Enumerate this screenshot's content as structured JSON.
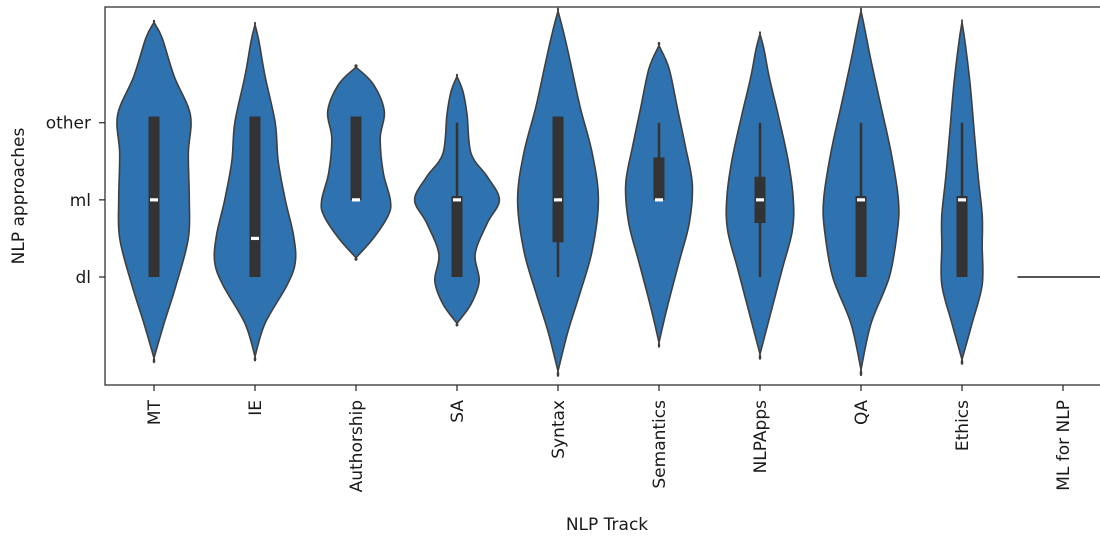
{
  "chart_data": {
    "type": "violin",
    "xlabel": "NLP Track",
    "ylabel": "NLP approaches",
    "y_categories": [
      "other",
      "ml",
      "dl"
    ],
    "y_ticks": [
      {
        "label": "other",
        "value": 2
      },
      {
        "label": "ml",
        "value": 1
      },
      {
        "label": "dl",
        "value": 0
      }
    ],
    "ylim": [
      -1.4,
      3.5
    ],
    "color": "#2f72b0",
    "box_color": "#333333",
    "median_color": "#ffffff",
    "categories": [
      "MT",
      "IE",
      "Authorship",
      "SA",
      "Syntax",
      "Semantics",
      "NLPApps",
      "QA",
      "Ethics",
      "ML for NLP"
    ],
    "violins": [
      {
        "category": "MT",
        "profile": [
          [
            -1.05,
            0.0
          ],
          [
            -0.6,
            0.1
          ],
          [
            -0.1,
            0.22
          ],
          [
            0.5,
            0.34
          ],
          [
            1.0,
            0.35
          ],
          [
            1.6,
            0.34
          ],
          [
            2.1,
            0.36
          ],
          [
            2.6,
            0.2
          ],
          [
            3.1,
            0.08
          ],
          [
            3.3,
            0.0
          ]
        ],
        "q1": 0.0,
        "median": 1.0,
        "q3": 2.08,
        "whisker_low": 0.0,
        "whisker_high": 2.08
      },
      {
        "category": "IE",
        "profile": [
          [
            -1.03,
            0.0
          ],
          [
            -0.6,
            0.1
          ],
          [
            -0.1,
            0.32
          ],
          [
            0.2,
            0.4
          ],
          [
            0.55,
            0.38
          ],
          [
            1.0,
            0.3
          ],
          [
            1.5,
            0.23
          ],
          [
            2.0,
            0.2
          ],
          [
            2.6,
            0.1
          ],
          [
            3.05,
            0.04
          ],
          [
            3.27,
            0.0
          ]
        ],
        "q1": 0.0,
        "median": 0.5,
        "q3": 2.08,
        "whisker_low": 0.0,
        "whisker_high": 2.08
      },
      {
        "category": "Authorship",
        "profile": [
          [
            0.25,
            0.0
          ],
          [
            0.5,
            0.17
          ],
          [
            0.8,
            0.32
          ],
          [
            1.0,
            0.34
          ],
          [
            1.35,
            0.27
          ],
          [
            1.8,
            0.24
          ],
          [
            2.15,
            0.28
          ],
          [
            2.5,
            0.17
          ],
          [
            2.72,
            0.0
          ]
        ],
        "q1": 1.0,
        "median": 1.0,
        "q3": 2.08,
        "whisker_low": 1.0,
        "whisker_high": 2.08
      },
      {
        "category": "SA",
        "profile": [
          [
            -0.6,
            0.0
          ],
          [
            -0.35,
            0.14
          ],
          [
            -0.05,
            0.22
          ],
          [
            0.3,
            0.18
          ],
          [
            0.7,
            0.3
          ],
          [
            1.0,
            0.42
          ],
          [
            1.3,
            0.3
          ],
          [
            1.6,
            0.14
          ],
          [
            2.1,
            0.1
          ],
          [
            2.4,
            0.06
          ],
          [
            2.6,
            0.0
          ]
        ],
        "q1": 0.0,
        "median": 1.0,
        "q3": 1.05,
        "whisker_low": 0.0,
        "whisker_high": 2.0
      },
      {
        "category": "Syntax",
        "profile": [
          [
            -1.22,
            0.0
          ],
          [
            -0.7,
            0.1
          ],
          [
            -0.2,
            0.22
          ],
          [
            0.35,
            0.34
          ],
          [
            1.0,
            0.4
          ],
          [
            1.6,
            0.34
          ],
          [
            2.2,
            0.22
          ],
          [
            2.8,
            0.12
          ],
          [
            3.2,
            0.05
          ],
          [
            3.45,
            0.0
          ]
        ],
        "q1": 0.45,
        "median": 1.0,
        "q3": 2.08,
        "whisker_low": 0.0,
        "whisker_high": 2.08
      },
      {
        "category": "Semantics",
        "profile": [
          [
            -0.85,
            0.0
          ],
          [
            -0.4,
            0.08
          ],
          [
            0.2,
            0.2
          ],
          [
            0.7,
            0.3
          ],
          [
            1.2,
            0.33
          ],
          [
            1.7,
            0.26
          ],
          [
            2.2,
            0.18
          ],
          [
            2.7,
            0.1
          ],
          [
            3.0,
            0.0
          ]
        ],
        "q1": 1.0,
        "median": 1.0,
        "q3": 1.55,
        "whisker_low": 1.0,
        "whisker_high": 2.0
      },
      {
        "category": "NLPApps",
        "profile": [
          [
            -1.0,
            0.0
          ],
          [
            -0.5,
            0.1
          ],
          [
            0.1,
            0.22
          ],
          [
            0.6,
            0.32
          ],
          [
            1.0,
            0.33
          ],
          [
            1.5,
            0.28
          ],
          [
            2.1,
            0.18
          ],
          [
            2.6,
            0.09
          ],
          [
            2.95,
            0.04
          ],
          [
            3.15,
            0.0
          ]
        ],
        "q1": 0.7,
        "median": 1.0,
        "q3": 1.3,
        "whisker_low": 0.0,
        "whisker_high": 2.0
      },
      {
        "category": "QA",
        "profile": [
          [
            -1.2,
            0.0
          ],
          [
            -0.6,
            0.1
          ],
          [
            0.0,
            0.28
          ],
          [
            0.6,
            0.36
          ],
          [
            1.0,
            0.37
          ],
          [
            1.6,
            0.3
          ],
          [
            2.2,
            0.2
          ],
          [
            2.8,
            0.1
          ],
          [
            3.2,
            0.04
          ],
          [
            3.45,
            0.0
          ]
        ],
        "q1": 0.0,
        "median": 1.0,
        "q3": 1.05,
        "whisker_low": 0.0,
        "whisker_high": 2.0
      },
      {
        "category": "Ethics",
        "profile": [
          [
            -1.07,
            0.0
          ],
          [
            -0.6,
            0.1
          ],
          [
            -0.1,
            0.2
          ],
          [
            0.4,
            0.2
          ],
          [
            0.8,
            0.2
          ],
          [
            1.3,
            0.16
          ],
          [
            1.9,
            0.12
          ],
          [
            2.5,
            0.08
          ],
          [
            3.05,
            0.03
          ],
          [
            3.3,
            0.0
          ]
        ],
        "q1": 0.0,
        "median": 1.0,
        "q3": 1.05,
        "whisker_low": 0.0,
        "whisker_high": 2.0
      },
      {
        "category": "ML for NLP",
        "single_value": 0.0,
        "half_width": 0.45
      }
    ]
  }
}
